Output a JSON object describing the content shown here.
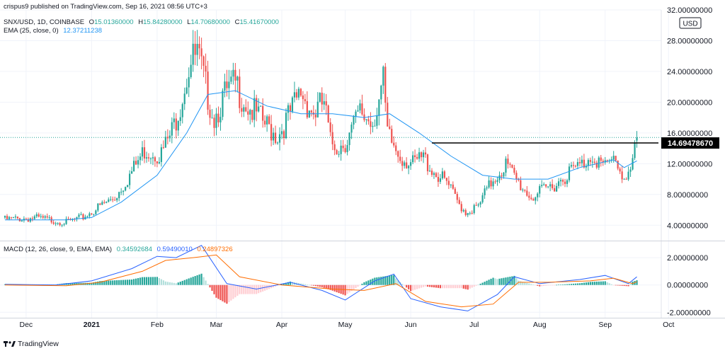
{
  "header": {
    "publish_line": "crispus9 published on TradingView.com, Sep 16, 2021 08:56 UTC+3",
    "symbol_line": "SNX/USD, 1D, COINBASE",
    "ohlc": [
      {
        "label": "O",
        "value": "15.01360000"
      },
      {
        "label": "H",
        "value": "15.84280000"
      },
      {
        "label": "L",
        "value": "14.70680000"
      },
      {
        "label": "C",
        "value": "15.41670000"
      }
    ],
    "ema_label": "EMA (25, close, 0)",
    "ema_value": "12.37211238",
    "currency_badge": "USD"
  },
  "macd_header": {
    "label": "MACD (12, 26, close, 9, EMA, EMA)",
    "histogram_value": "0.34592684",
    "macd_value": "0.59490010",
    "signal_value": "0.24897326"
  },
  "price_marker": "14.69478670",
  "last_price_tag": "15.41670000",
  "footer_logo": "TradingView",
  "colors": {
    "up": "#26a69a",
    "down": "#ef5350",
    "ema": "#2196f3",
    "macd_line": "#2962ff",
    "signal_line": "#ff6d00",
    "hist_up": "#26a69a",
    "hist_up_light": "#b2dfdb",
    "hist_down": "#ef5350",
    "hist_down_light": "#ffcdd2"
  },
  "chart_data": [
    {
      "type": "candlestick",
      "title": "SNX/USD, 1D, COINBASE",
      "ylim": [
        2.0,
        32.0
      ],
      "y_ticks": [
        "4.00000000",
        "8.00000000",
        "12.00000000",
        "16.00000000",
        "20.00000000",
        "24.00000000",
        "28.00000000",
        "32.00000000"
      ],
      "y_tick_values": [
        4,
        8,
        12,
        16,
        20,
        24,
        28,
        32
      ],
      "x_ticks": [
        "Dec",
        "2021",
        "Feb",
        "Mar",
        "Apr",
        "May",
        "Jun",
        "Jul",
        "Aug",
        "Sep",
        "Oct"
      ],
      "x_tick_dates": [
        "2020-12-01",
        "2021-01-01",
        "2021-02-01",
        "2021-03-01",
        "2021-04-01",
        "2021-05-01",
        "2021-06-01",
        "2021-07-01",
        "2021-08-01",
        "2021-09-01",
        "2021-10-01"
      ],
      "horizontal_line": {
        "y": 14.6947867,
        "from_date": "2021-06-11",
        "to_date": "2021-09-20"
      },
      "key_points": [
        {
          "date": "2020-11-21",
          "close": 5.0
        },
        {
          "date": "2020-12-06",
          "close": 5.2
        },
        {
          "date": "2020-12-20",
          "close": 4.6
        },
        {
          "date": "2020-12-28",
          "close": 5.3
        },
        {
          "date": "2021-01-06",
          "close": 7.0
        },
        {
          "date": "2021-01-12",
          "close": 8.0
        },
        {
          "date": "2021-01-20",
          "close": 11.5
        },
        {
          "date": "2021-01-26",
          "close": 14.5
        },
        {
          "date": "2021-02-03",
          "close": 14.0
        },
        {
          "date": "2021-02-08",
          "close": 17.0
        },
        {
          "date": "2021-02-12",
          "close": 21.0
        },
        {
          "date": "2021-02-16",
          "close": 26.0
        },
        {
          "date": "2021-02-20",
          "close": 27.5
        },
        {
          "date": "2021-02-24",
          "close": 23.0
        },
        {
          "date": "2021-02-28",
          "close": 19.0
        },
        {
          "date": "2021-03-04",
          "close": 21.5
        },
        {
          "date": "2021-03-10",
          "close": 23.5
        },
        {
          "date": "2021-03-16",
          "close": 20.5
        },
        {
          "date": "2021-03-24",
          "close": 18.0
        },
        {
          "date": "2021-03-30",
          "close": 16.5
        },
        {
          "date": "2021-04-06",
          "close": 20.0
        },
        {
          "date": "2021-04-10",
          "close": 22.5
        },
        {
          "date": "2021-04-16",
          "close": 19.5
        },
        {
          "date": "2021-04-21",
          "close": 21.0
        },
        {
          "date": "2021-04-24",
          "close": 15.5
        },
        {
          "date": "2021-04-28",
          "close": 15.0
        },
        {
          "date": "2021-05-02",
          "close": 16.0
        },
        {
          "date": "2021-05-08",
          "close": 19.5
        },
        {
          "date": "2021-05-14",
          "close": 18.5
        },
        {
          "date": "2021-05-19",
          "close": 23.5
        },
        {
          "date": "2021-05-21",
          "close": 16.5
        },
        {
          "date": "2021-05-26",
          "close": 14.0
        },
        {
          "date": "2021-06-02",
          "close": 12.5
        },
        {
          "date": "2021-06-07",
          "close": 13.5
        },
        {
          "date": "2021-06-12",
          "close": 11.5
        },
        {
          "date": "2021-06-18",
          "close": 10.0
        },
        {
          "date": "2021-06-23",
          "close": 7.5
        },
        {
          "date": "2021-06-27",
          "close": 6.0
        },
        {
          "date": "2021-07-03",
          "close": 6.7
        },
        {
          "date": "2021-07-06",
          "close": 8.5
        },
        {
          "date": "2021-07-10",
          "close": 10.5
        },
        {
          "date": "2021-07-16",
          "close": 12.5
        },
        {
          "date": "2021-07-22",
          "close": 10.0
        },
        {
          "date": "2021-07-28",
          "close": 8.0
        },
        {
          "date": "2021-08-03",
          "close": 9.0
        },
        {
          "date": "2021-08-09",
          "close": 10.0
        },
        {
          "date": "2021-08-15",
          "close": 11.5
        },
        {
          "date": "2021-08-21",
          "close": 12.5
        },
        {
          "date": "2021-08-26",
          "close": 14.0
        },
        {
          "date": "2021-09-01",
          "close": 12.0
        },
        {
          "date": "2021-09-06",
          "close": 13.5
        },
        {
          "date": "2021-09-09",
          "close": 10.8
        },
        {
          "date": "2021-09-13",
          "close": 11.8
        },
        {
          "date": "2021-09-16",
          "close": 15.4167
        }
      ],
      "ema_points": [
        {
          "date": "2020-11-21",
          "value": 4.7
        },
        {
          "date": "2020-12-20",
          "value": 4.7
        },
        {
          "date": "2021-01-01",
          "value": 5.0
        },
        {
          "date": "2021-01-15",
          "value": 7.0
        },
        {
          "date": "2021-02-01",
          "value": 10.5
        },
        {
          "date": "2021-02-15",
          "value": 16.0
        },
        {
          "date": "2021-02-25",
          "value": 21.0
        },
        {
          "date": "2021-03-10",
          "value": 21.5
        },
        {
          "date": "2021-03-25",
          "value": 19.5
        },
        {
          "date": "2021-04-10",
          "value": 18.5
        },
        {
          "date": "2021-04-25",
          "value": 18.5
        },
        {
          "date": "2021-05-10",
          "value": 18.0
        },
        {
          "date": "2021-05-22",
          "value": 18.5
        },
        {
          "date": "2021-06-05",
          "value": 16.0
        },
        {
          "date": "2021-06-20",
          "value": 13.0
        },
        {
          "date": "2021-07-05",
          "value": 10.5
        },
        {
          "date": "2021-07-20",
          "value": 10.0
        },
        {
          "date": "2021-08-05",
          "value": 10.0
        },
        {
          "date": "2021-08-20",
          "value": 11.5
        },
        {
          "date": "2021-09-05",
          "value": 12.5
        },
        {
          "date": "2021-09-10",
          "value": 11.5
        },
        {
          "date": "2021-09-16",
          "value": 12.3721
        }
      ]
    },
    {
      "type": "line",
      "title": "MACD (12, 26, close, 9, EMA, EMA)",
      "ylim": [
        -2.4,
        3.2
      ],
      "y_ticks": [
        "-2.00000000",
        "0.00000000",
        "2.00000000"
      ],
      "y_tick_values": [
        -2,
        0,
        2
      ],
      "macd_points": [
        {
          "date": "2020-11-21",
          "value": 0.05
        },
        {
          "date": "2020-12-15",
          "value": 0.0
        },
        {
          "date": "2021-01-01",
          "value": 0.3
        },
        {
          "date": "2021-01-20",
          "value": 1.2
        },
        {
          "date": "2021-02-01",
          "value": 2.1
        },
        {
          "date": "2021-02-10",
          "value": 2.0
        },
        {
          "date": "2021-02-22",
          "value": 2.9
        },
        {
          "date": "2021-03-06",
          "value": 0.1
        },
        {
          "date": "2021-03-20",
          "value": -0.3
        },
        {
          "date": "2021-04-05",
          "value": 0.2
        },
        {
          "date": "2021-04-20",
          "value": -0.4
        },
        {
          "date": "2021-05-01",
          "value": -1.1
        },
        {
          "date": "2021-05-15",
          "value": 0.3
        },
        {
          "date": "2021-05-24",
          "value": 0.8
        },
        {
          "date": "2021-06-01",
          "value": -1.0
        },
        {
          "date": "2021-06-15",
          "value": -1.6
        },
        {
          "date": "2021-06-28",
          "value": -1.9
        },
        {
          "date": "2021-07-12",
          "value": -0.7
        },
        {
          "date": "2021-07-20",
          "value": 0.6
        },
        {
          "date": "2021-08-01",
          "value": 0.1
        },
        {
          "date": "2021-08-20",
          "value": 0.4
        },
        {
          "date": "2021-09-01",
          "value": 0.7
        },
        {
          "date": "2021-09-12",
          "value": 0.1
        },
        {
          "date": "2021-09-16",
          "value": 0.5949
        }
      ],
      "signal_points": [
        {
          "date": "2020-11-21",
          "value": 0.0
        },
        {
          "date": "2020-12-20",
          "value": -0.05
        },
        {
          "date": "2021-01-05",
          "value": 0.2
        },
        {
          "date": "2021-01-25",
          "value": 1.0
        },
        {
          "date": "2021-02-05",
          "value": 1.8
        },
        {
          "date": "2021-02-18",
          "value": 2.0
        },
        {
          "date": "2021-03-01",
          "value": 2.2
        },
        {
          "date": "2021-03-12",
          "value": 0.6
        },
        {
          "date": "2021-04-01",
          "value": 0.0
        },
        {
          "date": "2021-04-25",
          "value": -0.3
        },
        {
          "date": "2021-05-10",
          "value": -0.4
        },
        {
          "date": "2021-05-25",
          "value": 0.1
        },
        {
          "date": "2021-06-08",
          "value": -1.2
        },
        {
          "date": "2021-06-25",
          "value": -1.6
        },
        {
          "date": "2021-07-10",
          "value": -1.4
        },
        {
          "date": "2021-07-22",
          "value": 0.2
        },
        {
          "date": "2021-08-05",
          "value": 0.2
        },
        {
          "date": "2021-08-25",
          "value": 0.3
        },
        {
          "date": "2021-09-05",
          "value": 0.5
        },
        {
          "date": "2021-09-14",
          "value": 0.1
        },
        {
          "date": "2021-09-16",
          "value": 0.249
        }
      ]
    }
  ]
}
